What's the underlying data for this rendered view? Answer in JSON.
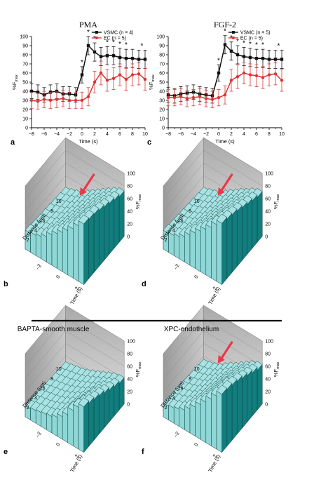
{
  "chart_data": [
    {
      "panel": "a",
      "type": "line",
      "title": "PMA",
      "xlabel": "Time (s)",
      "ylabel": "%F",
      "ylabel_sub": "max",
      "xlim": [
        -8,
        10
      ],
      "ylim": [
        0,
        100
      ],
      "xticks": [
        -8,
        -6,
        -4,
        -2,
        0,
        2,
        4,
        6,
        8,
        10
      ],
      "yticks": [
        0,
        10,
        20,
        30,
        40,
        50,
        60,
        70,
        80,
        90,
        100
      ],
      "x": [
        -8,
        -7,
        -6,
        -5,
        -4,
        -3,
        -2,
        -1,
        0,
        1,
        2,
        3,
        4,
        5,
        6,
        7,
        8,
        9,
        10
      ],
      "series": [
        {
          "name": "VSMC (n = 4)",
          "color": "#111111",
          "marker": "square",
          "values": [
            40,
            39,
            36,
            39,
            40,
            37,
            37,
            36,
            58,
            90,
            83,
            78,
            79,
            79,
            77,
            76,
            76,
            75,
            75
          ],
          "errors": [
            8,
            8,
            8,
            8,
            8,
            8,
            8,
            8,
            9,
            10,
            10,
            10,
            10,
            10,
            10,
            10,
            10,
            10,
            10
          ]
        },
        {
          "name": "EC (n = 5)",
          "color": "#d83535",
          "marker": "circle",
          "values": [
            30,
            29,
            31,
            30,
            31,
            32,
            30,
            30,
            30,
            34,
            50,
            60,
            52,
            54,
            58,
            53,
            58,
            59,
            53
          ],
          "errors": [
            9,
            9,
            9,
            9,
            9,
            9,
            9,
            9,
            9,
            10,
            12,
            13,
            12,
            12,
            12,
            12,
            12,
            12,
            12
          ]
        }
      ],
      "significance": [
        {
          "x": 0,
          "label": "*"
        },
        {
          "x": 1,
          "label": "*"
        },
        {
          "x": 2,
          "label": "*"
        },
        {
          "x": 4,
          "label": "*"
        },
        {
          "x": 5,
          "label": "*"
        },
        {
          "x": 6,
          "label": "*"
        },
        {
          "x": 7,
          "label": "*"
        },
        {
          "x": 9.5,
          "label": "*"
        }
      ],
      "legend": "top-left"
    },
    {
      "panel": "c",
      "type": "line",
      "title": "FGF-2",
      "xlabel": "Time (s)",
      "ylabel": "%F",
      "ylabel_sub": "max",
      "xlim": [
        -8,
        10
      ],
      "ylim": [
        0,
        100
      ],
      "xticks": [
        -8,
        -6,
        -4,
        -2,
        0,
        2,
        4,
        6,
        8,
        10
      ],
      "yticks": [
        0,
        10,
        20,
        30,
        40,
        50,
        60,
        70,
        80,
        90,
        100
      ],
      "x": [
        -8,
        -7,
        -6,
        -5,
        -4,
        -3,
        -2,
        -1,
        0,
        1,
        2,
        3,
        4,
        5,
        6,
        7,
        8,
        9,
        10
      ],
      "series": [
        {
          "name": "VSMC (n = 5)",
          "color": "#111111",
          "marker": "square",
          "values": [
            36,
            35,
            37,
            38,
            39,
            37,
            36,
            35,
            60,
            91,
            84,
            80,
            78,
            77,
            76,
            76,
            75,
            75,
            75
          ],
          "errors": [
            8,
            8,
            8,
            8,
            8,
            8,
            8,
            8,
            9,
            10,
            10,
            10,
            10,
            10,
            10,
            10,
            10,
            10,
            10
          ]
        },
        {
          "name": "EC (n = 5)",
          "color": "#d83535",
          "marker": "circle",
          "values": [
            33,
            33,
            34,
            32,
            33,
            34,
            32,
            31,
            33,
            36,
            52,
            56,
            60,
            58,
            57,
            55,
            58,
            59,
            52
          ],
          "errors": [
            9,
            9,
            9,
            9,
            9,
            9,
            9,
            9,
            9,
            10,
            12,
            13,
            12,
            12,
            12,
            12,
            12,
            12,
            12
          ]
        }
      ],
      "significance": [
        {
          "x": 0,
          "label": "*"
        },
        {
          "x": 1,
          "label": "*"
        },
        {
          "x": 2,
          "label": "*"
        },
        {
          "x": 3,
          "label": "*"
        },
        {
          "x": 4,
          "label": "*"
        },
        {
          "x": 5,
          "label": "*"
        },
        {
          "x": 6,
          "label": "*"
        },
        {
          "x": 7,
          "label": "*"
        },
        {
          "x": 9.5,
          "label": "*"
        }
      ],
      "legend": "top-left"
    },
    {
      "panel": "b",
      "type": "area",
      "title": "",
      "xlabel": "Distance (µm)",
      "ylabel": "Time (s)",
      "zlabel": "%F",
      "zlabel_sub": "max",
      "distance_ticks": [
        2,
        4,
        6,
        8,
        10
      ],
      "time_ticks": [
        -2,
        0,
        2
      ],
      "zticks": [
        0,
        20,
        40,
        60,
        80,
        100
      ],
      "annotation": "red arrow marking propagating Ca2+ wave",
      "surface_heights": [
        [
          30,
          32,
          35,
          40,
          48,
          55,
          62,
          70,
          78,
          88,
          96
        ],
        [
          28,
          31,
          34,
          38,
          45,
          52,
          60,
          68,
          76,
          86,
          94
        ],
        [
          27,
          30,
          33,
          37,
          43,
          50,
          58,
          66,
          74,
          84,
          92
        ],
        [
          26,
          29,
          32,
          36,
          42,
          49,
          56,
          64,
          72,
          80,
          88
        ],
        [
          25,
          28,
          31,
          35,
          41,
          47,
          54,
          62,
          70,
          78,
          84
        ],
        [
          24,
          27,
          30,
          34,
          40,
          46,
          53,
          60,
          68,
          74,
          80
        ],
        [
          23,
          26,
          29,
          33,
          39,
          45,
          52,
          58,
          65,
          71,
          76
        ],
        [
          22,
          25,
          28,
          32,
          38,
          44,
          50,
          56,
          62,
          68,
          72
        ]
      ]
    },
    {
      "panel": "d",
      "type": "area",
      "title": "",
      "xlabel": "Distance (µm)",
      "ylabel": "Time (s)",
      "zlabel": "%F",
      "zlabel_sub": "max",
      "distance_ticks": [
        2,
        4,
        6,
        8,
        10
      ],
      "time_ticks": [
        -2,
        0,
        2
      ],
      "zticks": [
        0,
        20,
        40,
        60,
        80,
        100
      ],
      "annotation": "red arrow marking propagating Ca2+ wave",
      "surface_heights": [
        [
          30,
          32,
          35,
          40,
          48,
          56,
          64,
          72,
          80,
          90,
          97
        ],
        [
          28,
          31,
          34,
          38,
          45,
          53,
          61,
          69,
          77,
          87,
          94
        ],
        [
          27,
          30,
          33,
          37,
          43,
          51,
          59,
          67,
          75,
          84,
          91
        ],
        [
          26,
          29,
          32,
          36,
          42,
          49,
          57,
          64,
          72,
          80,
          87
        ],
        [
          25,
          28,
          31,
          35,
          41,
          47,
          55,
          62,
          70,
          77,
          83
        ],
        [
          24,
          27,
          30,
          34,
          40,
          46,
          53,
          60,
          67,
          73,
          79
        ],
        [
          23,
          26,
          29,
          33,
          39,
          45,
          51,
          57,
          64,
          70,
          75
        ],
        [
          22,
          25,
          28,
          32,
          38,
          44,
          50,
          56,
          61,
          67,
          71
        ]
      ]
    },
    {
      "panel": "e",
      "type": "area",
      "title": "BAPTA-smooth muscle",
      "xlabel": "Distance (µm)",
      "ylabel": "Time (s)",
      "zlabel": "%F",
      "zlabel_sub": "max",
      "distance_ticks": [
        2,
        4,
        6,
        8,
        10
      ],
      "time_ticks": [
        -2,
        0,
        2
      ],
      "zticks": [
        0,
        20,
        40,
        60,
        80,
        100
      ],
      "surface_heights": [
        [
          18,
          20,
          22,
          24,
          26,
          30,
          36,
          44,
          56,
          66,
          72
        ],
        [
          17,
          19,
          21,
          23,
          26,
          30,
          35,
          42,
          52,
          62,
          68
        ],
        [
          16,
          18,
          20,
          22,
          25,
          29,
          34,
          40,
          48,
          58,
          64
        ],
        [
          15,
          17,
          19,
          21,
          24,
          28,
          33,
          38,
          45,
          54,
          60
        ],
        [
          14,
          16,
          18,
          20,
          23,
          27,
          31,
          36,
          42,
          50,
          55
        ],
        [
          13,
          15,
          17,
          19,
          22,
          26,
          30,
          34,
          40,
          46,
          50
        ],
        [
          12,
          14,
          16,
          18,
          21,
          25,
          29,
          33,
          38,
          42,
          46
        ],
        [
          11,
          13,
          15,
          17,
          20,
          24,
          28,
          32,
          36,
          40,
          42
        ]
      ]
    },
    {
      "panel": "f",
      "type": "area",
      "title": "XPC-endothelium",
      "xlabel": "Distance (µm)",
      "ylabel": "Time (s)",
      "zlabel": "%F",
      "zlabel_sub": "max",
      "distance_ticks": [
        2,
        4,
        6,
        8,
        10
      ],
      "time_ticks": [
        -2,
        0,
        2
      ],
      "zticks": [
        0,
        20,
        40,
        60,
        80,
        100
      ],
      "annotation": "red arrow marking propagating Ca2+ wave",
      "surface_heights": [
        [
          22,
          24,
          27,
          31,
          38,
          46,
          55,
          64,
          74,
          84,
          92
        ],
        [
          21,
          23,
          26,
          30,
          36,
          44,
          53,
          62,
          72,
          82,
          90
        ],
        [
          20,
          22,
          25,
          29,
          35,
          42,
          51,
          60,
          70,
          80,
          87
        ],
        [
          19,
          21,
          24,
          28,
          34,
          41,
          49,
          58,
          67,
          76,
          83
        ],
        [
          18,
          20,
          23,
          27,
          33,
          40,
          47,
          56,
          64,
          72,
          78
        ],
        [
          17,
          19,
          22,
          26,
          32,
          38,
          45,
          53,
          61,
          68,
          73
        ],
        [
          16,
          18,
          21,
          25,
          31,
          37,
          43,
          50,
          57,
          63,
          68
        ],
        [
          15,
          17,
          20,
          24,
          30,
          36,
          41,
          47,
          53,
          59,
          63
        ]
      ]
    }
  ],
  "colors": {
    "surface_top": "#a8e2e2",
    "surface_side": "#127d7d",
    "wall": "#bfbfbf",
    "arrow": "#e8384a"
  }
}
